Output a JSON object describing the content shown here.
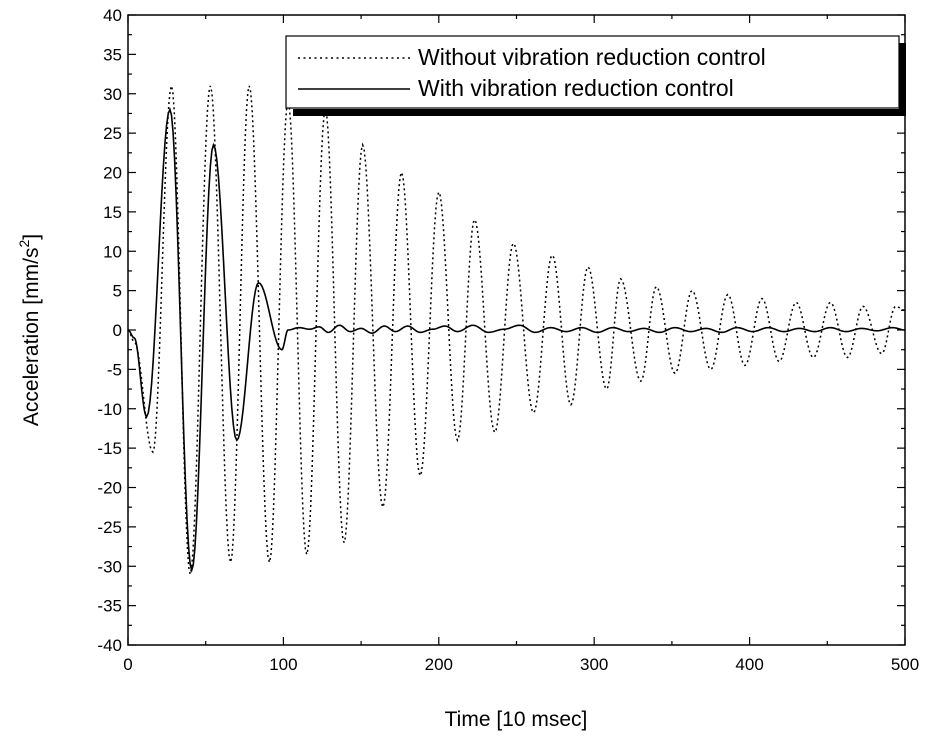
{
  "chart_data": {
    "type": "line",
    "title": "",
    "xlabel": "Time [10 msec]",
    "ylabel_main": "Acceleration [mm/s",
    "ylabel_sup": "2",
    "ylabel_end": "]",
    "xlim": [
      0,
      500
    ],
    "ylim": [
      -40,
      40
    ],
    "x_ticks": [
      "0",
      "100",
      "200",
      "300",
      "400",
      "500"
    ],
    "y_ticks": [
      "-40",
      "-35",
      "-30",
      "-25",
      "-20",
      "-15",
      "-10",
      "-5",
      "0",
      "5",
      "10",
      "15",
      "20",
      "25",
      "30",
      "35",
      "40"
    ],
    "grid": false,
    "legend_position": "top-right",
    "series": [
      {
        "name": "Without vibration reduction control",
        "style": "dotted",
        "color": "#000000",
        "extrema": [
          [
            0,
            0
          ],
          [
            4,
            -1.5
          ],
          [
            16,
            -15.5
          ],
          [
            28,
            31
          ],
          [
            40,
            -31
          ],
          [
            53,
            31
          ],
          [
            66,
            -29.5
          ],
          [
            78,
            31
          ],
          [
            91,
            -29.5
          ],
          [
            103,
            29
          ],
          [
            115,
            -28.5
          ],
          [
            127,
            28
          ],
          [
            139,
            -27
          ],
          [
            151,
            23.5
          ],
          [
            164,
            -22.5
          ],
          [
            176,
            20
          ],
          [
            188,
            -18.5
          ],
          [
            200,
            17.5
          ],
          [
            212,
            -14
          ],
          [
            223,
            14
          ],
          [
            236,
            -13
          ],
          [
            248,
            11
          ],
          [
            261,
            -10.5
          ],
          [
            273,
            9.5
          ],
          [
            285,
            -9.5
          ],
          [
            296,
            8
          ],
          [
            308,
            -7.5
          ],
          [
            317,
            6.5
          ],
          [
            330,
            -6.5
          ],
          [
            340,
            5.5
          ],
          [
            352,
            -5.5
          ],
          [
            363,
            5
          ],
          [
            375,
            -5
          ],
          [
            386,
            4.5
          ],
          [
            397,
            -4.5
          ],
          [
            408,
            4
          ],
          [
            419,
            -4
          ],
          [
            430,
            3.5
          ],
          [
            441,
            -3.5
          ],
          [
            452,
            3.5
          ],
          [
            463,
            -3.5
          ],
          [
            473,
            3
          ],
          [
            485,
            -3
          ],
          [
            494,
            3
          ],
          [
            500,
            2.5
          ]
        ]
      },
      {
        "name": "With vibration reduction control",
        "style": "solid",
        "color": "#000000",
        "extrema": [
          [
            0,
            0
          ],
          [
            4,
            -1
          ],
          [
            12,
            -11
          ],
          [
            27,
            28
          ],
          [
            41,
            -30.5
          ],
          [
            55,
            23.5
          ],
          [
            70,
            -14
          ],
          [
            84,
            6
          ],
          [
            99,
            -2.5
          ],
          [
            103,
            0
          ],
          [
            110,
            0.3
          ],
          [
            117,
            0.1
          ],
          [
            123,
            0.4
          ],
          [
            129,
            -0.3
          ],
          [
            136,
            0.6
          ],
          [
            143,
            -0.2
          ],
          [
            150,
            0.2
          ],
          [
            157,
            -0.4
          ],
          [
            165,
            0.5
          ],
          [
            172,
            -0.2
          ],
          [
            180,
            0.5
          ],
          [
            188,
            -0.3
          ],
          [
            196,
            0.1
          ],
          [
            204,
            0.5
          ],
          [
            212,
            -0.2
          ],
          [
            222,
            0.6
          ],
          [
            232,
            -0.3
          ],
          [
            242,
            0.1
          ],
          [
            252,
            0.6
          ],
          [
            262,
            -0.3
          ],
          [
            272,
            0.3
          ],
          [
            282,
            -0.2
          ],
          [
            292,
            0.3
          ],
          [
            302,
            -0.3
          ],
          [
            312,
            0.3
          ],
          [
            322,
            -0.2
          ],
          [
            332,
            0.2
          ],
          [
            342,
            -0.3
          ],
          [
            352,
            0.3
          ],
          [
            362,
            -0.2
          ],
          [
            372,
            0.2
          ],
          [
            382,
            -0.3
          ],
          [
            392,
            0.3
          ],
          [
            402,
            -0.2
          ],
          [
            412,
            0.3
          ],
          [
            422,
            -0.2
          ],
          [
            432,
            0.2
          ],
          [
            442,
            -0.2
          ],
          [
            452,
            0.3
          ],
          [
            462,
            -0.2
          ],
          [
            472,
            0.2
          ],
          [
            482,
            -0.1
          ],
          [
            492,
            0.3
          ],
          [
            500,
            0
          ]
        ]
      }
    ]
  }
}
